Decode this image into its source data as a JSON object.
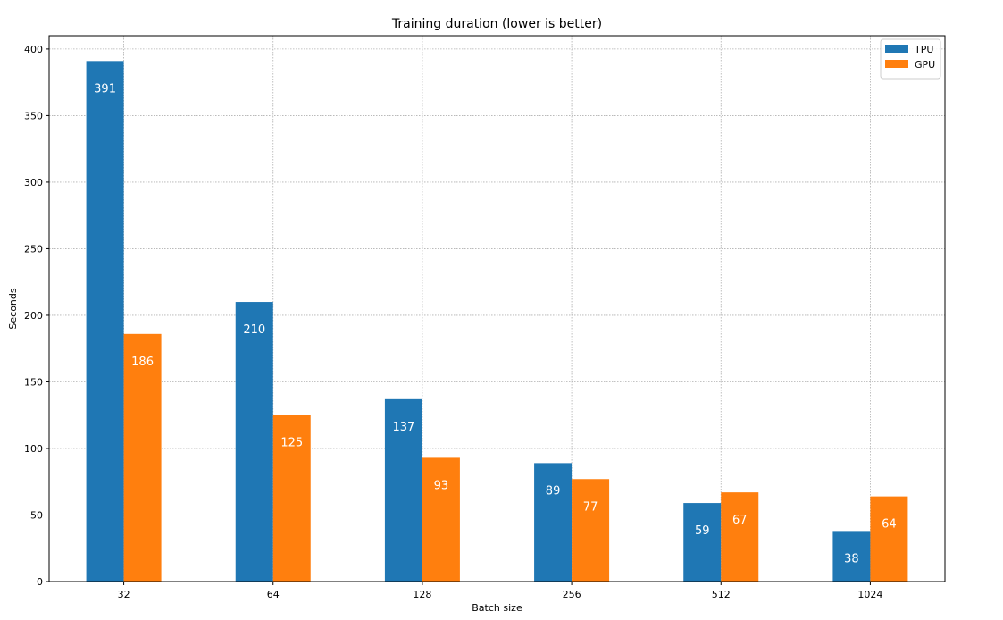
{
  "chart_data": {
    "type": "bar",
    "title": "Training duration (lower is better)",
    "xlabel": "Batch size",
    "ylabel": "Seconds",
    "categories": [
      "32",
      "64",
      "128",
      "256",
      "512",
      "1024"
    ],
    "series": [
      {
        "name": "TPU",
        "values": [
          391,
          210,
          137,
          89,
          59,
          38
        ],
        "color": "#1f77b4"
      },
      {
        "name": "GPU",
        "values": [
          186,
          125,
          93,
          77,
          67,
          64
        ],
        "color": "#ff7f0e"
      }
    ],
    "ylim": [
      0,
      410
    ],
    "yticks": [
      0,
      50,
      100,
      150,
      200,
      250,
      300,
      350,
      400
    ],
    "grid": true,
    "legend_position": "top-right",
    "data_labels": "inside-top",
    "data_label_color": "#ffffff"
  }
}
